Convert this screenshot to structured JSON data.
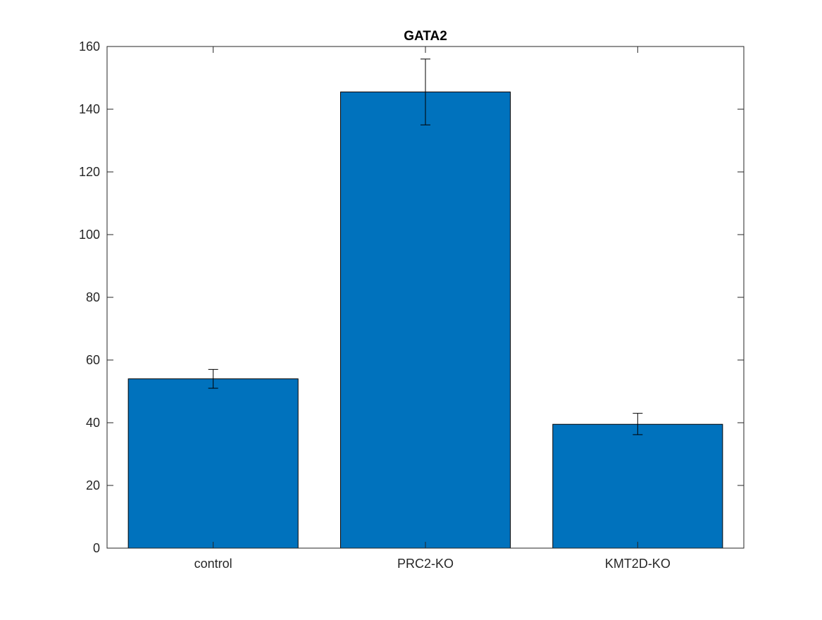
{
  "chart_data": {
    "type": "bar",
    "title": "GATA2",
    "xlabel": "",
    "ylabel": "",
    "categories": [
      "control",
      "PRC2-KO",
      "KMT2D-KO"
    ],
    "values": [
      54,
      145.5,
      39.5
    ],
    "error_low": [
      51,
      135,
      36.2
    ],
    "error_high": [
      57,
      156,
      43
    ],
    "ylim": [
      0,
      160
    ],
    "yticks": [
      0,
      20,
      40,
      60,
      80,
      100,
      120,
      140,
      160
    ],
    "grid": false,
    "legend": "none",
    "bar_color": "#0072BD",
    "bar_edge_color": "#000000",
    "axis_color": "#262626"
  }
}
